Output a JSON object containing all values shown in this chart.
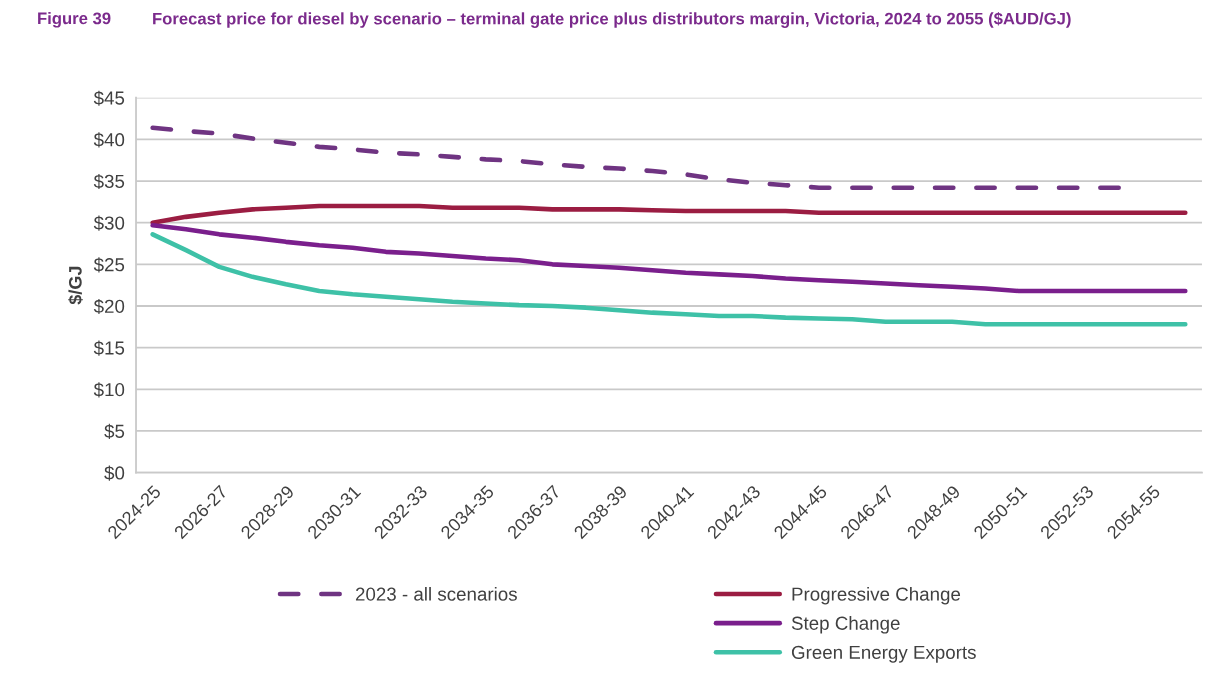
{
  "chart_data": {
    "type": "line",
    "title": "Forecast price for diesel by scenario – terminal gate price plus distributors margin, Victoria, 2024 to 2055 ($AUD/GJ)",
    "annotations": [
      "Figure 39"
    ],
    "ylabel": "$/GJ",
    "categories": [
      "2024-25",
      null,
      "2026-27",
      null,
      "2028-29",
      null,
      "2030-31",
      null,
      "2032-33",
      null,
      "2034-35",
      null,
      "2036-37",
      null,
      "2038-39",
      null,
      "2040-41",
      null,
      "2042-43",
      null,
      "2044-45",
      null,
      "2046-47",
      null,
      "2048-49",
      null,
      "2050-51",
      null,
      "2052-53",
      null,
      "2054-55",
      null
    ],
    "series": [
      {
        "name": "2023 - all scenarios",
        "color": "#6f3482",
        "line_style": "dashed",
        "values": [
          41.4,
          41.0,
          40.7,
          40.1,
          39.6,
          39.1,
          38.8,
          38.4,
          38.2,
          37.9,
          37.6,
          37.4,
          37.0,
          36.7,
          36.5,
          36.2,
          35.8,
          35.2,
          34.8,
          34.5,
          34.2,
          34.2,
          34.2,
          34.2,
          34.2,
          34.2,
          34.2,
          34.2,
          34.2,
          34.2,
          null,
          null
        ]
      },
      {
        "name": "Progressive Change",
        "color": "#9b1d42",
        "values": [
          30.0,
          30.7,
          31.2,
          31.6,
          31.8,
          32.0,
          32.0,
          32.0,
          32.0,
          31.8,
          31.8,
          31.8,
          31.6,
          31.6,
          31.6,
          31.5,
          31.4,
          31.4,
          31.4,
          31.4,
          31.2,
          31.2,
          31.2,
          31.2,
          31.2,
          31.2,
          31.2,
          31.2,
          31.2,
          31.2,
          31.2,
          31.2
        ]
      },
      {
        "name": "Step Change",
        "color": "#7a1f8c",
        "values": [
          29.7,
          29.2,
          28.6,
          28.2,
          27.7,
          27.3,
          27.0,
          26.5,
          26.3,
          26.0,
          25.7,
          25.5,
          25.0,
          24.8,
          24.6,
          24.3,
          24.0,
          23.8,
          23.6,
          23.3,
          23.1,
          22.9,
          22.7,
          22.5,
          22.3,
          22.1,
          21.8,
          21.8,
          21.8,
          21.8,
          21.8,
          21.8
        ]
      },
      {
        "name": "Green Energy Exports",
        "color": "#3ec1a7",
        "values": [
          28.6,
          26.7,
          24.7,
          23.5,
          22.6,
          21.8,
          21.4,
          21.1,
          20.8,
          20.5,
          20.3,
          20.1,
          20.0,
          19.8,
          19.5,
          19.2,
          19.0,
          18.8,
          18.8,
          18.6,
          18.5,
          18.4,
          18.1,
          18.1,
          18.1,
          17.8,
          17.8,
          17.8,
          17.8,
          17.8,
          17.8,
          17.8
        ]
      }
    ],
    "ylim": [
      0,
      45
    ],
    "yticks": [
      {
        "value": 0,
        "label": "$0"
      },
      {
        "value": 5,
        "label": "$5"
      },
      {
        "value": 10,
        "label": "$10"
      },
      {
        "value": 15,
        "label": "$15"
      },
      {
        "value": 20,
        "label": "$20"
      },
      {
        "value": 25,
        "label": "$25"
      },
      {
        "value": 30,
        "label": "$30"
      },
      {
        "value": 35,
        "label": "$35"
      },
      {
        "value": 40,
        "label": "$40"
      },
      {
        "value": 45,
        "label": "$45"
      }
    ],
    "grid": "y",
    "legend": "bottom"
  }
}
